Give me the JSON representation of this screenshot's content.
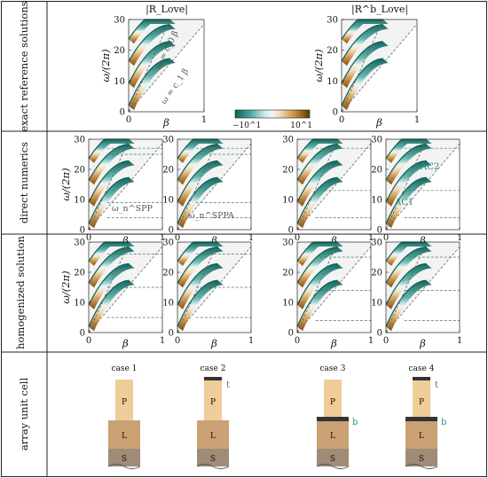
{
  "row_labels": [
    "exact reference solutions",
    "direct numerics",
    "homogenized solution",
    "array unit cell"
  ],
  "titles": [
    "|R_Love|",
    "|R^b_Love|"
  ],
  "axes": {
    "ylabel": "ω/(2π)",
    "xlabel": "β",
    "yticks": [
      "0",
      "10",
      "20",
      "30"
    ],
    "xticks": [
      "0",
      "1"
    ]
  },
  "line_labels": [
    "ω = c_0 β",
    "ω = c_1 β"
  ],
  "colorbar": {
    "min_label": "−10^1",
    "max_label": "10^1",
    "colors": [
      "#0b5f56",
      "#2f8f86",
      "#7cc2bb",
      "#c6e6e2",
      "#f3f3f3",
      "#f0dcb6",
      "#d9a95f",
      "#a86c1f",
      "#5e3808"
    ]
  },
  "annotations": {
    "spp": "ω_n^SPP",
    "sppa": "ω_n^SPPA",
    "ac2": "AC2",
    "ac1": "AC1"
  },
  "cases": [
    {
      "label": "case 1",
      "top_cap": false,
      "mid_cap": false
    },
    {
      "label": "case 2",
      "top_cap": true,
      "mid_cap": false
    },
    {
      "label": "case 3",
      "top_cap": false,
      "mid_cap": true
    },
    {
      "label": "case 4",
      "top_cap": true,
      "mid_cap": true
    }
  ],
  "layer_labels": {
    "p": "P",
    "l": "L",
    "s": "S",
    "t": "t",
    "b": "b"
  },
  "colors": {
    "teal": "#0b5f56",
    "brown": "#8a5316",
    "p_layer": "#f0cc98",
    "l_layer": "#caa173",
    "s_layer": "#9e8b78",
    "cap": "#333333",
    "annotation": "#2c8f8a"
  },
  "chart_data": {
    "type": "heatmap",
    "xlabel": "β",
    "ylabel": "ω/(2π)",
    "xlim": [
      0,
      1
    ],
    "ylim": [
      0,
      30
    ],
    "panels": [
      {
        "row": "exact reference solutions",
        "title": "|R_Love|"
      },
      {
        "row": "exact reference solutions",
        "title": "|R^b_Love|"
      },
      {
        "row": "direct numerics",
        "case": "case 1"
      },
      {
        "row": "direct numerics",
        "case": "case 2"
      },
      {
        "row": "direct numerics",
        "case": "case 3"
      },
      {
        "row": "direct numerics",
        "case": "case 4"
      },
      {
        "row": "homogenized solution",
        "case": "case 1"
      },
      {
        "row": "homogenized solution",
        "case": "case 2"
      },
      {
        "row": "homogenized solution",
        "case": "case 3"
      },
      {
        "row": "homogenized solution",
        "case": "case 4"
      }
    ]
  }
}
